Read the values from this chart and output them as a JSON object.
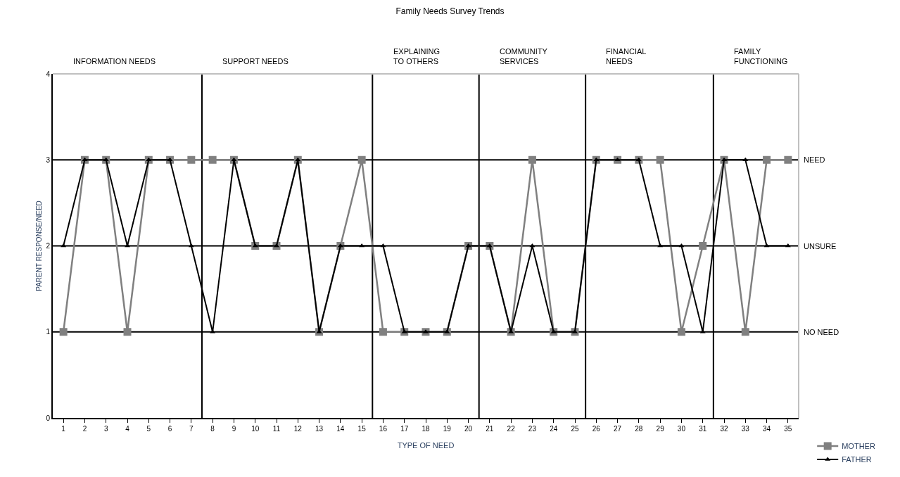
{
  "chart_data": {
    "type": "line",
    "title": "Family Needs Survey Trends",
    "xlabel": "TYPE OF NEED",
    "ylabel": "PARENT RESPONSE/NEED",
    "x": [
      1,
      2,
      3,
      4,
      5,
      6,
      7,
      8,
      9,
      10,
      11,
      12,
      13,
      14,
      15,
      16,
      17,
      18,
      19,
      20,
      21,
      22,
      23,
      24,
      25,
      26,
      27,
      28,
      29,
      30,
      31,
      32,
      33,
      34,
      35
    ],
    "xlim": [
      0.5,
      35.5
    ],
    "xticks": [
      1,
      2,
      3,
      4,
      5,
      6,
      7,
      8,
      9,
      10,
      11,
      12,
      13,
      14,
      15,
      16,
      17,
      18,
      19,
      20,
      21,
      22,
      23,
      24,
      25,
      26,
      27,
      28,
      29,
      30,
      31,
      32,
      33,
      34,
      35
    ],
    "ylim": [
      0,
      4
    ],
    "yticks": [
      0,
      1,
      2,
      3,
      4
    ],
    "series": [
      {
        "name": "MOTHER",
        "color": "#808080",
        "marker": "square",
        "values": [
          1,
          3,
          3,
          1,
          3,
          3,
          3,
          3,
          3,
          2,
          2,
          3,
          1,
          2,
          3,
          1,
          1,
          1,
          1,
          2,
          2,
          1,
          3,
          1,
          1,
          3,
          3,
          3,
          3,
          1,
          2,
          3,
          1,
          3,
          3
        ]
      },
      {
        "name": "FATHER",
        "color": "#000000",
        "marker": "triangle",
        "values": [
          2,
          3,
          3,
          2,
          3,
          3,
          2,
          1,
          3,
          2,
          2,
          3,
          1,
          2,
          2,
          2,
          1,
          1,
          1,
          2,
          2,
          1,
          2,
          1,
          1,
          3,
          3,
          3,
          2,
          2,
          1,
          3,
          3,
          2,
          2
        ]
      }
    ],
    "ref_lines": [
      {
        "axis": "y",
        "value": 3,
        "label": "NEED",
        "color": "#000000"
      },
      {
        "axis": "y",
        "value": 2,
        "label": "UNSURE",
        "color": "#000000"
      },
      {
        "axis": "y",
        "value": 1,
        "label": "NO NEED",
        "color": "#000000"
      },
      {
        "axis": "x",
        "value": 7.5,
        "color": "#000000"
      },
      {
        "axis": "x",
        "value": 15.5,
        "color": "#000000"
      },
      {
        "axis": "x",
        "value": 20.5,
        "color": "#000000"
      },
      {
        "axis": "x",
        "value": 25.5,
        "color": "#000000"
      },
      {
        "axis": "x",
        "value": 31.5,
        "color": "#000000"
      }
    ],
    "annotations": [
      "INFORMATION NEEDS",
      "SUPPORT NEEDS",
      "EXPLAINING\nTO OTHERS",
      "COMMUNITY\nSERVICES",
      "FINANCIAL\nNEEDS",
      "FAMILY\nFUNCTIONING"
    ],
    "grid": false,
    "legend": "bottom right",
    "line_style": "solid"
  }
}
